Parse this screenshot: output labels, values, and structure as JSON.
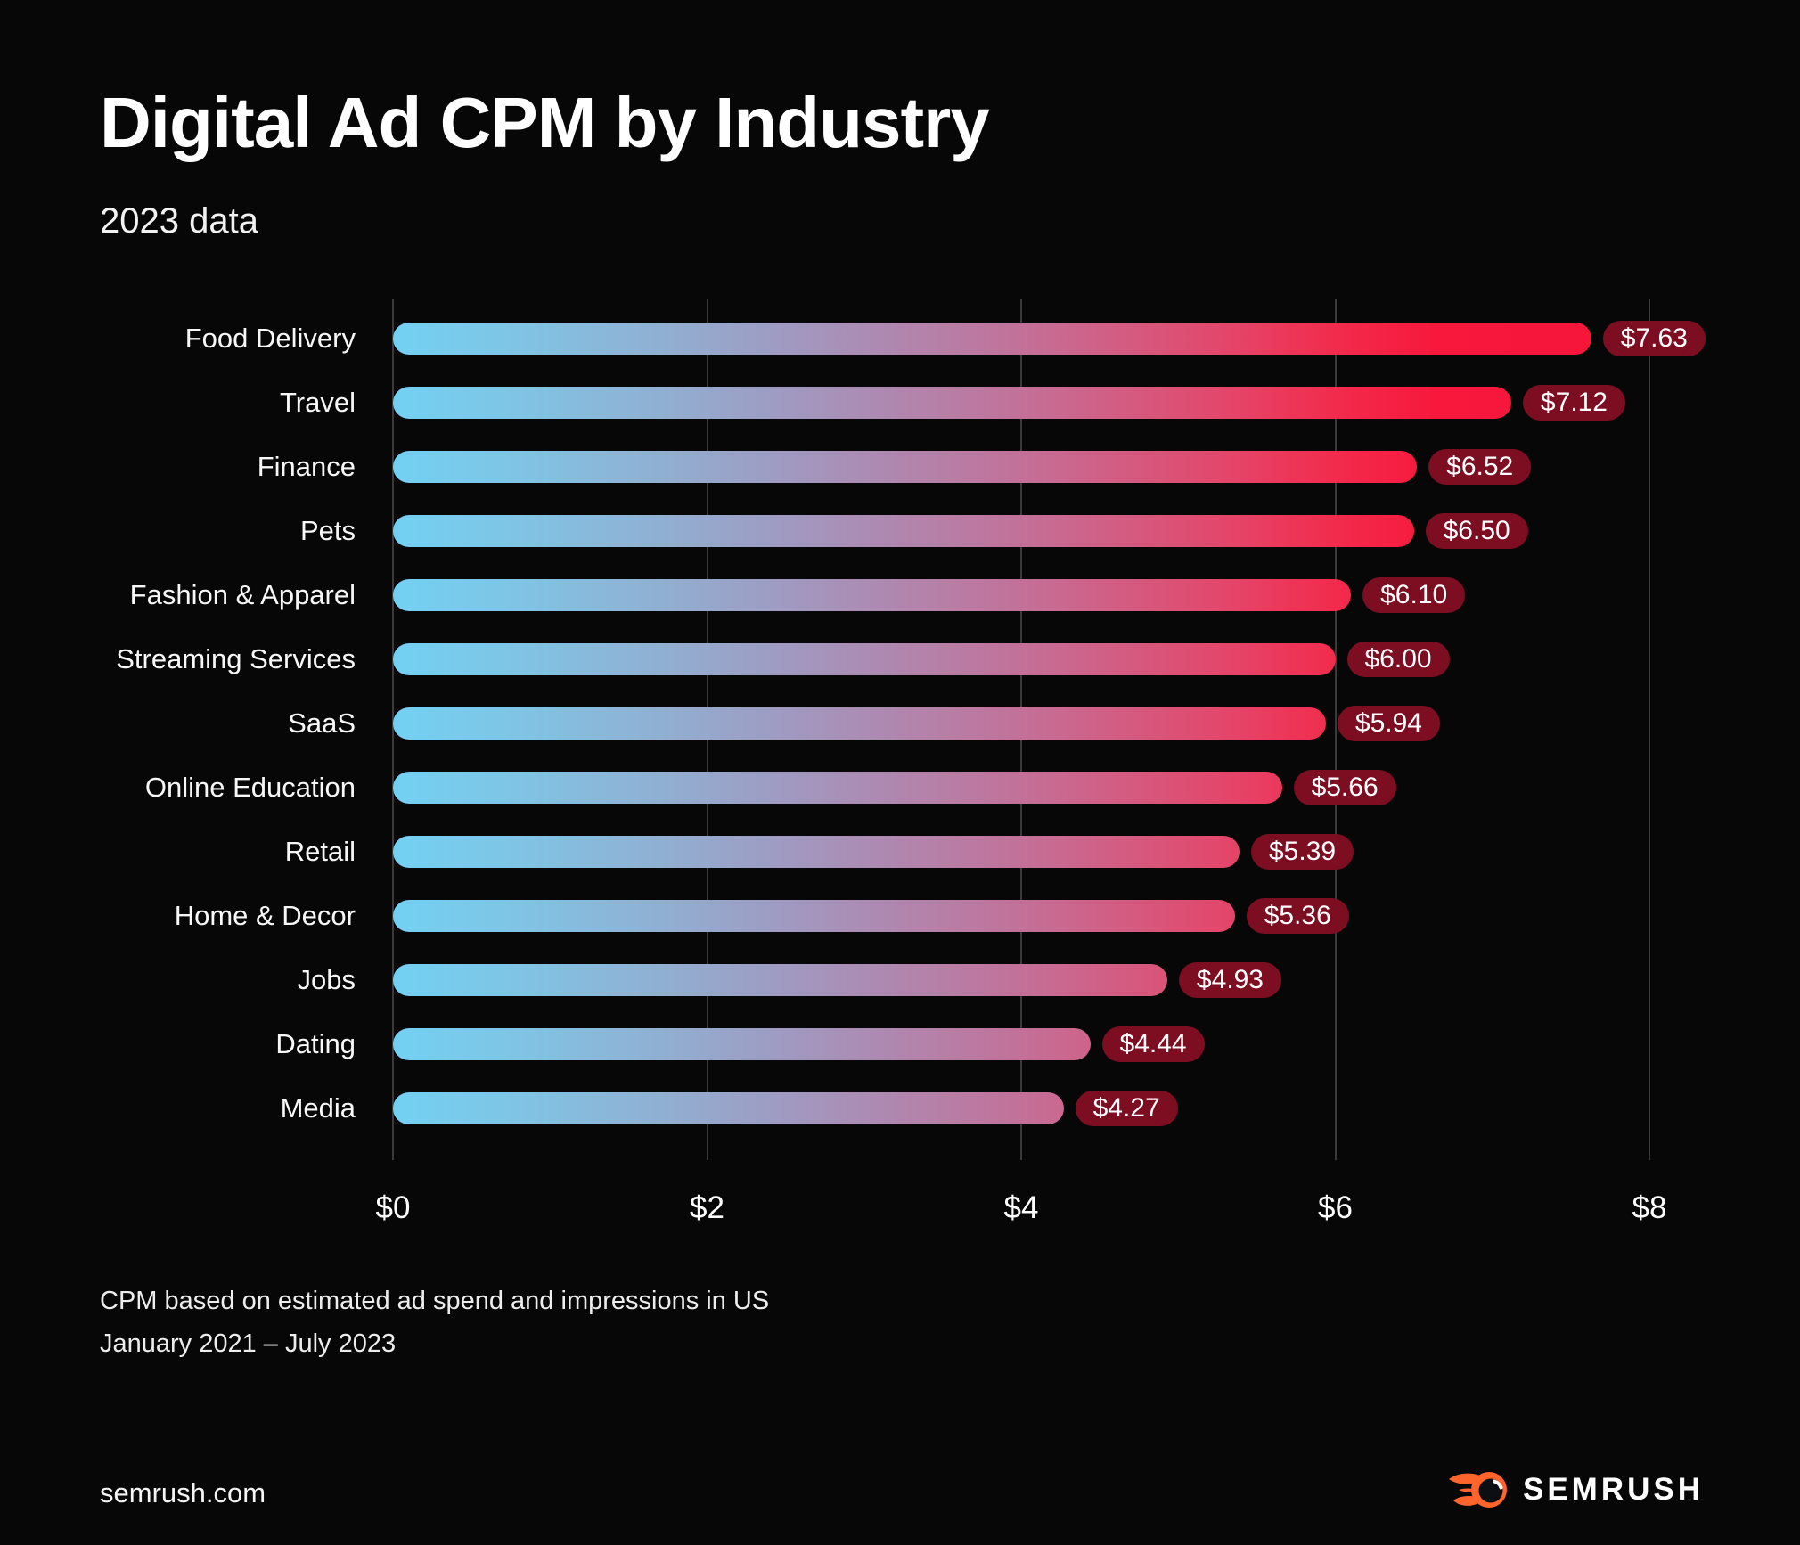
{
  "header": {
    "title": "Digital Ad CPM by Industry",
    "subtitle": "2023 data"
  },
  "chart_data": {
    "type": "bar",
    "orientation": "horizontal",
    "title": "Digital Ad CPM by Industry",
    "subtitle": "2023 data",
    "categories": [
      "Food Delivery",
      "Travel",
      "Finance",
      "Pets",
      "Fashion & Apparel",
      "Streaming Services",
      "SaaS",
      "Online Education",
      "Retail",
      "Home & Decor",
      "Jobs",
      "Dating",
      "Media"
    ],
    "values": [
      7.63,
      7.12,
      6.52,
      6.5,
      6.1,
      6.0,
      5.94,
      5.66,
      5.39,
      5.36,
      4.93,
      4.44,
      4.27
    ],
    "value_labels": [
      "$7.63",
      "$7.12",
      "$6.52",
      "$6.50",
      "$6.10",
      "$6.00",
      "$5.94",
      "$5.66",
      "$5.39",
      "$5.36",
      "$4.93",
      "$4.44",
      "$4.27"
    ],
    "x_ticks": [
      "$0",
      "$2",
      "$4",
      "$6",
      "$8"
    ],
    "xlim": [
      0,
      8
    ],
    "xlabel": "",
    "ylabel": "",
    "grid": true,
    "legend": false,
    "colors": {
      "background": "#070707",
      "bar_gradient_start": "#72D1F3",
      "bar_gradient_mid": "#AE89B1",
      "bar_gradient_end": "#F7143A",
      "value_badge_background": "#7D0E22",
      "gridline": "#3A3A3A",
      "text": "#FFFFFF"
    }
  },
  "footnote": {
    "line1": "CPM based on estimated ad spend and impressions in US",
    "line2": "January 2021 – July 2023"
  },
  "footer": {
    "site": "semrush.com",
    "brand": "SEMRUSH",
    "brand_icon": "semrush-flame-icon",
    "brand_color": "#FF642D"
  }
}
